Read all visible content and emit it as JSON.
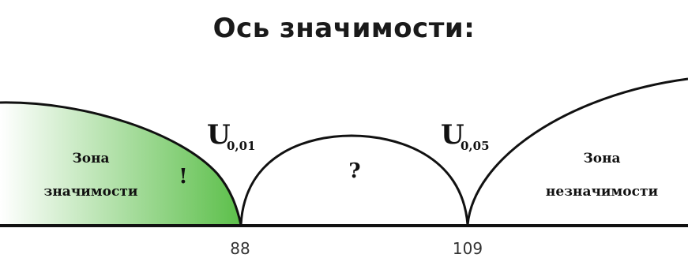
{
  "title": "Ось значимости:",
  "zones": {
    "significance": {
      "line1": "Зона",
      "line2": "значимости",
      "symbol": "!"
    },
    "uncertain": {
      "symbol": "?"
    },
    "insignificance": {
      "line1": "Зона",
      "line2": "незначимости"
    }
  },
  "critical_values": [
    {
      "letter": "U",
      "subscript": "0,01",
      "tick_label": "88"
    },
    {
      "letter": "U",
      "subscript": "0,05",
      "tick_label": "109"
    }
  ],
  "colors": {
    "significance_fill": "#5cbf4a",
    "significance_fade": "#ffffff",
    "line": "#111111"
  }
}
